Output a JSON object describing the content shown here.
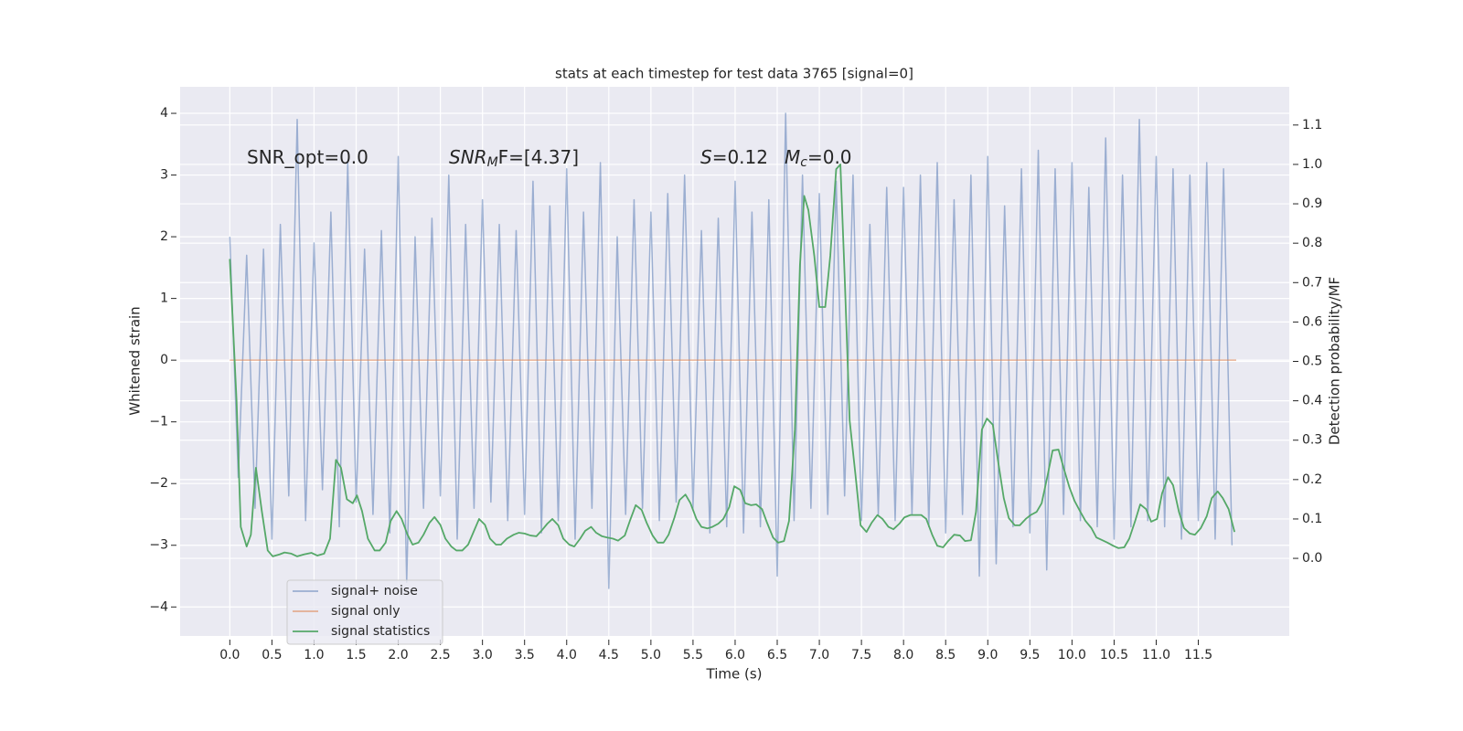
{
  "chart_data": {
    "type": "line",
    "title": "stats at each timestep for test data 3765 [signal=0]",
    "x_label": "Time (s)",
    "y_label": "Whitened strain",
    "y2_label": "Detection probability/MF",
    "annotations": [
      {
        "base": "SNR_opt=0.0"
      },
      {
        "base": "SNR",
        "sub": "M",
        "tail": "F=[4.37]"
      },
      {
        "base": "S",
        "tail": "=0.12"
      },
      {
        "base": "M",
        "sub": "c",
        "tail": "=0.0"
      }
    ],
    "xlim": [
      -0.59,
      12.58
    ],
    "ylim": [
      -4.47,
      4.43
    ],
    "y2lim": [
      -0.197,
      1.197
    ],
    "xticks": [
      {
        "value": 0,
        "label": "0.0"
      },
      0.5,
      {
        "value": 1,
        "label": "1.0"
      },
      1.5,
      {
        "value": 2,
        "label": "2.0"
      },
      2.5,
      {
        "value": 3,
        "label": "3.0"
      },
      3.5,
      {
        "value": 4,
        "label": "4.0"
      },
      4.5,
      {
        "value": 5,
        "label": "5.0"
      },
      5.5,
      {
        "value": 6,
        "label": "6.0"
      },
      6.5,
      {
        "value": 7,
        "label": "7.0"
      },
      7.5,
      {
        "value": 8,
        "label": "8.0"
      },
      8.5,
      {
        "value": 9,
        "label": "9.0"
      },
      9.5,
      {
        "value": 10,
        "label": "10.0"
      },
      10.5,
      {
        "value": 11,
        "label": "11.0"
      },
      11.5
    ],
    "yticks": [
      {
        "value": -4,
        "label": "−4"
      },
      {
        "value": -3,
        "label": "−3"
      },
      {
        "value": -2,
        "label": "−2"
      },
      {
        "value": -1,
        "label": "−1"
      },
      0,
      1,
      2,
      3,
      4
    ],
    "y2ticks": [
      {
        "value": 0,
        "label": "0.0"
      },
      0.1,
      0.2,
      0.3,
      0.4,
      0.5,
      0.6,
      0.7,
      0.8,
      0.9,
      {
        "value": 1,
        "label": "1.0"
      },
      1.1
    ],
    "grid": true,
    "legend_loc": "lower left",
    "series": [
      {
        "name": "signal+ noise",
        "color": "#4c72b0",
        "opacity": 0.5,
        "x": [
          0.0,
          0.1,
          0.2,
          0.3,
          0.4,
          0.5,
          0.6,
          0.7,
          0.8,
          0.9,
          1.0,
          1.1,
          1.2,
          1.3,
          1.4,
          1.5,
          1.6,
          1.7,
          1.8,
          1.9,
          2.0,
          2.1,
          2.2,
          2.3,
          2.4,
          2.5,
          2.6,
          2.7,
          2.8,
          2.9,
          3.0,
          3.1,
          3.2,
          3.3,
          3.4,
          3.5,
          3.6,
          3.7,
          3.8,
          3.9,
          4.0,
          4.1,
          4.2,
          4.3,
          4.4,
          4.5,
          4.6,
          4.7,
          4.8,
          4.9,
          5.0,
          5.1,
          5.2,
          5.3,
          5.4,
          5.5,
          5.6,
          5.7,
          5.8,
          5.9,
          6.0,
          6.1,
          6.2,
          6.3,
          6.4,
          6.5,
          6.6,
          6.7,
          6.8,
          6.9,
          7.0,
          7.1,
          7.2,
          7.3,
          7.4,
          7.5,
          7.6,
          7.7,
          7.8,
          7.9,
          8.0,
          8.1,
          8.2,
          8.3,
          8.4,
          8.5,
          8.6,
          8.7,
          8.8,
          8.9,
          9.0,
          9.1,
          9.2,
          9.3,
          9.4,
          9.5,
          9.6,
          9.7,
          9.8,
          9.9,
          10.0,
          10.1,
          10.2,
          10.3,
          10.4,
          10.5,
          10.6,
          10.7,
          10.8,
          10.9,
          11.0,
          11.1,
          11.2,
          11.3,
          11.4,
          11.5,
          11.6,
          11.7,
          11.8,
          11.9
        ],
        "values": [
          2.0,
          -1.9,
          1.7,
          -2.4,
          1.8,
          -2.9,
          2.2,
          -2.2,
          3.9,
          -2.6,
          1.9,
          -2.1,
          2.4,
          -2.7,
          3.2,
          -2.3,
          1.8,
          -2.5,
          2.1,
          -2.8,
          3.3,
          -3.6,
          2.0,
          -2.4,
          2.3,
          -2.2,
          3.0,
          -2.9,
          2.2,
          -2.4,
          2.6,
          -2.3,
          2.2,
          -2.6,
          2.1,
          -2.5,
          2.9,
          -2.8,
          2.5,
          -2.6,
          3.1,
          -2.9,
          2.4,
          -2.4,
          3.2,
          -3.7,
          2.0,
          -2.5,
          2.6,
          -2.4,
          2.4,
          -2.6,
          2.7,
          -2.3,
          3.0,
          -2.4,
          2.1,
          -2.8,
          2.3,
          -2.7,
          2.9,
          -2.8,
          2.4,
          -2.7,
          2.6,
          -3.5,
          4.0,
          -2.6,
          3.0,
          -2.4,
          2.7,
          -2.5,
          2.9,
          -2.2,
          3.0,
          -2.6,
          2.2,
          -2.5,
          2.8,
          -2.6,
          2.8,
          -2.5,
          3.0,
          -2.7,
          3.2,
          -2.8,
          2.6,
          -2.5,
          3.0,
          -3.5,
          3.3,
          -3.3,
          2.5,
          -2.7,
          3.1,
          -2.8,
          3.4,
          -3.4,
          3.1,
          -2.5,
          3.2,
          -2.6,
          2.8,
          -2.7,
          3.6,
          -2.9,
          3.0,
          -2.7,
          3.9,
          -2.6,
          3.3,
          -2.7,
          3.1,
          -2.9,
          3.0,
          -2.6,
          3.2,
          -2.9,
          3.1,
          -3.0
        ]
      },
      {
        "name": "signal only",
        "color": "#dd8452",
        "opacity": 0.6,
        "x": [
          0.0,
          11.95
        ],
        "values": [
          0,
          0
        ]
      },
      {
        "name": "signal statistics",
        "color": "#55a868",
        "opacity": 1,
        "axis": "y2",
        "x": [
          0,
          0.08,
          0.13,
          0.2,
          0.25,
          0.31,
          0.38,
          0.45,
          0.51,
          0.59,
          0.65,
          0.73,
          0.8,
          0.88,
          0.97,
          1.04,
          1.12,
          1.19,
          1.26,
          1.32,
          1.39,
          1.46,
          1.51,
          1.57,
          1.64,
          1.72,
          1.78,
          1.85,
          1.91,
          1.98,
          2.04,
          2.11,
          2.17,
          2.24,
          2.3,
          2.37,
          2.43,
          2.5,
          2.56,
          2.63,
          2.69,
          2.76,
          2.83,
          2.9,
          2.96,
          3.03,
          3.09,
          3.16,
          3.22,
          3.29,
          3.37,
          3.43,
          3.5,
          3.57,
          3.64,
          3.7,
          3.77,
          3.83,
          3.9,
          3.96,
          4.03,
          4.09,
          4.16,
          4.22,
          4.29,
          4.35,
          4.42,
          4.48,
          4.55,
          4.61,
          4.69,
          4.75,
          4.82,
          4.89,
          4.95,
          5.02,
          5.08,
          5.15,
          5.21,
          5.28,
          5.34,
          5.41,
          5.47,
          5.54,
          5.6,
          5.67,
          5.73,
          5.8,
          5.86,
          5.93,
          5.99,
          6.06,
          6.12,
          6.19,
          6.25,
          6.32,
          6.38,
          6.45,
          6.51,
          6.58,
          6.64,
          6.71,
          6.77,
          6.82,
          6.87,
          6.94,
          7.0,
          7.07,
          7.13,
          7.2,
          7.25,
          7.3,
          7.36,
          7.43,
          7.49,
          7.56,
          7.62,
          7.69,
          7.75,
          7.82,
          7.88,
          7.95,
          8.01,
          8.08,
          8.14,
          8.21,
          8.27,
          8.34,
          8.4,
          8.47,
          8.53,
          8.6,
          8.67,
          8.73,
          8.8,
          8.86,
          8.93,
          8.99,
          9.06,
          9.12,
          9.19,
          9.25,
          9.32,
          9.38,
          9.45,
          9.51,
          9.58,
          9.64,
          9.71,
          9.77,
          9.84,
          9.9,
          9.97,
          10.03,
          10.1,
          10.16,
          10.23,
          10.29,
          10.36,
          10.42,
          10.49,
          10.55,
          10.62,
          10.68,
          10.75,
          10.81,
          10.88,
          10.94,
          11.01,
          11.07,
          11.14,
          11.2,
          11.27,
          11.33,
          11.4,
          11.46,
          11.53,
          11.6,
          11.66,
          11.73,
          11.79,
          11.86,
          11.93
        ],
        "values": [
          0.76,
          0.4,
          0.08,
          0.03,
          0.06,
          0.23,
          0.12,
          0.02,
          0.005,
          0.01,
          0.015,
          0.012,
          0.005,
          0.01,
          0.014,
          0.007,
          0.012,
          0.05,
          0.25,
          0.23,
          0.15,
          0.14,
          0.16,
          0.12,
          0.05,
          0.02,
          0.02,
          0.04,
          0.095,
          0.12,
          0.1,
          0.06,
          0.035,
          0.04,
          0.06,
          0.09,
          0.105,
          0.085,
          0.05,
          0.03,
          0.02,
          0.02,
          0.035,
          0.07,
          0.1,
          0.085,
          0.05,
          0.035,
          0.035,
          0.05,
          0.06,
          0.065,
          0.063,
          0.058,
          0.056,
          0.07,
          0.088,
          0.1,
          0.084,
          0.05,
          0.035,
          0.03,
          0.05,
          0.07,
          0.08,
          0.065,
          0.056,
          0.053,
          0.05,
          0.045,
          0.058,
          0.095,
          0.135,
          0.123,
          0.09,
          0.058,
          0.04,
          0.04,
          0.06,
          0.104,
          0.148,
          0.162,
          0.14,
          0.1,
          0.08,
          0.076,
          0.08,
          0.088,
          0.1,
          0.13,
          0.183,
          0.174,
          0.14,
          0.135,
          0.137,
          0.125,
          0.09,
          0.053,
          0.04,
          0.044,
          0.095,
          0.327,
          0.745,
          0.92,
          0.884,
          0.768,
          0.638,
          0.638,
          0.768,
          0.988,
          1.0,
          0.72,
          0.35,
          0.21,
          0.084,
          0.067,
          0.09,
          0.11,
          0.1,
          0.08,
          0.074,
          0.088,
          0.104,
          0.11,
          0.11,
          0.11,
          0.1,
          0.06,
          0.032,
          0.028,
          0.044,
          0.06,
          0.058,
          0.044,
          0.046,
          0.118,
          0.327,
          0.355,
          0.339,
          0.25,
          0.153,
          0.102,
          0.084,
          0.084,
          0.1,
          0.11,
          0.118,
          0.14,
          0.21,
          0.274,
          0.276,
          0.23,
          0.18,
          0.146,
          0.118,
          0.095,
          0.077,
          0.053,
          0.046,
          0.04,
          0.032,
          0.026,
          0.028,
          0.05,
          0.095,
          0.137,
          0.125,
          0.093,
          0.1,
          0.165,
          0.206,
          0.186,
          0.118,
          0.077,
          0.063,
          0.06,
          0.077,
          0.107,
          0.153,
          0.17,
          0.153,
          0.125,
          0.067
        ]
      }
    ]
  }
}
